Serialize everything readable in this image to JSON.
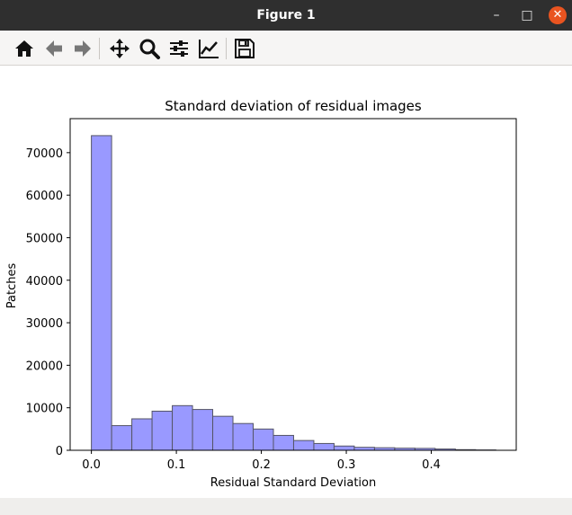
{
  "window": {
    "title": "Figure 1",
    "minimize_glyph": "–",
    "maximize_glyph": "□",
    "close_glyph": "✕"
  },
  "toolbar": {
    "buttons": [
      {
        "name": "home-icon"
      },
      {
        "name": "back-arrow-icon"
      },
      {
        "name": "forward-arrow-icon"
      },
      {
        "name": "pan-move-icon"
      },
      {
        "name": "zoom-magnifier-icon"
      },
      {
        "name": "configure-subplots-icon"
      },
      {
        "name": "edit-axis-lines-icon"
      },
      {
        "name": "save-floppy-icon"
      }
    ]
  },
  "chart_data": {
    "type": "bar",
    "title": "Standard deviation of residual images",
    "xlabel": "Residual Standard Deviation",
    "ylabel": "Patches",
    "xlim": [
      -0.025,
      0.5
    ],
    "ylim": [
      0,
      78000
    ],
    "xticks": [
      0.0,
      0.1,
      0.2,
      0.3,
      0.4
    ],
    "xtick_labels": [
      "0.0",
      "0.1",
      "0.2",
      "0.3",
      "0.4"
    ],
    "yticks": [
      0,
      10000,
      20000,
      30000,
      40000,
      50000,
      60000,
      70000
    ],
    "ytick_labels": [
      "0",
      "10000",
      "20000",
      "30000",
      "40000",
      "50000",
      "60000",
      "70000"
    ],
    "bin_edges": [
      0.0,
      0.0238,
      0.0476,
      0.0714,
      0.0952,
      0.119,
      0.1428,
      0.1666,
      0.1904,
      0.2142,
      0.238,
      0.2618,
      0.2856,
      0.3094,
      0.3332,
      0.357,
      0.3808,
      0.4046,
      0.4284,
      0.4522,
      0.476
    ],
    "values": [
      74000,
      5800,
      7400,
      9200,
      10500,
      9600,
      8000,
      6300,
      5000,
      3500,
      2300,
      1600,
      1000,
      700,
      600,
      500,
      450,
      300,
      150,
      80
    ],
    "bar_color": "#9999ff",
    "edge_color": "#555566",
    "grid": false,
    "legend": "none"
  }
}
